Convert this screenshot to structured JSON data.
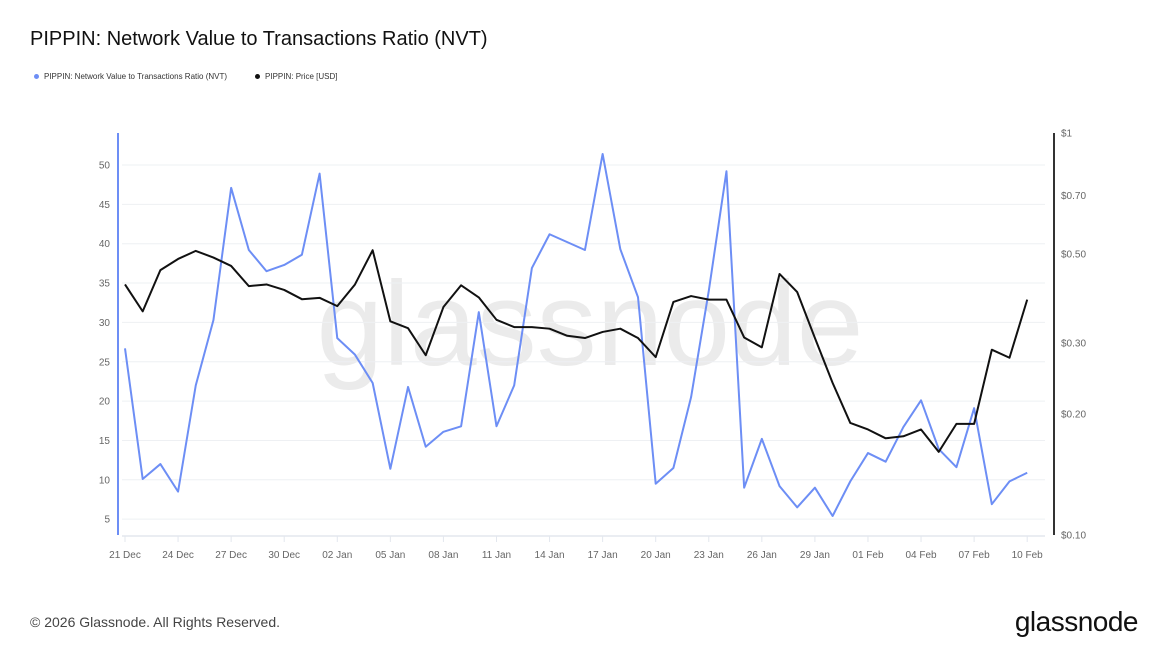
{
  "title": "PIPPIN: Network Value to Transactions Ratio (NVT)",
  "footer": "© 2026 Glassnode. All Rights Reserved.",
  "logo": "glassnode",
  "watermark": "glassnode",
  "chart_data": {
    "type": "line",
    "title": "PIPPIN: Network Value to Transactions Ratio (NVT)",
    "x_start": "2025-12-21",
    "x_end": "2026-02-10",
    "x_step": "1 day",
    "x_tick_labels": [
      "21 Dec",
      "24 Dec",
      "27 Dec",
      "30 Dec",
      "02 Jan",
      "05 Jan",
      "08 Jan",
      "11 Jan",
      "14 Jan",
      "17 Jan",
      "20 Jan",
      "23 Jan",
      "26 Jan",
      "29 Jan",
      "01 Feb",
      "04 Feb",
      "07 Feb",
      "10 Feb"
    ],
    "y_left": {
      "ticks": [
        5,
        10,
        15,
        20,
        25,
        30,
        35,
        40,
        45,
        50
      ],
      "range": [
        2,
        54
      ],
      "scale": "linear",
      "color": "#6d8ef5"
    },
    "y_right": {
      "ticks": [
        "$0.10",
        "$0.20",
        "$0.30",
        "$0.50",
        "$0.70",
        "$1"
      ],
      "tick_values": [
        0.1,
        0.2,
        0.3,
        0.5,
        0.7,
        1
      ],
      "range": [
        0.1,
        1
      ],
      "scale": "log",
      "color": "#222222"
    },
    "grid": true,
    "legend_position": "top-left",
    "series": [
      {
        "name": "PIPPIN: Network Value to Transactions Ratio (NVT)",
        "axis": "left",
        "color": "#6d8ef5",
        "values": [
          26.7,
          10.1,
          12.0,
          8.5,
          22.0,
          30.3,
          47.1,
          39.2,
          36.5,
          37.3,
          38.6,
          48.9,
          28.0,
          25.9,
          22.3,
          11.4,
          21.8,
          14.2,
          16.1,
          16.8,
          31.3,
          16.8,
          22.0,
          36.9,
          41.2,
          40.2,
          39.2,
          51.4,
          39.3,
          33.2,
          9.5,
          11.5,
          20.5,
          34.0,
          49.2,
          9.0,
          15.2,
          9.2,
          6.5,
          9.0,
          5.4,
          9.8,
          13.4,
          12.3,
          16.7,
          20.1,
          13.9,
          11.6,
          19.1,
          6.9,
          9.8,
          10.9
        ]
      },
      {
        "name": "PIPPIN: Price [USD]",
        "axis": "right",
        "color": "#111111",
        "values": [
          0.42,
          0.36,
          0.456,
          0.486,
          0.509,
          0.49,
          0.467,
          0.416,
          0.42,
          0.407,
          0.386,
          0.389,
          0.371,
          0.42,
          0.511,
          0.34,
          0.327,
          0.28,
          0.369,
          0.418,
          0.39,
          0.343,
          0.329,
          0.329,
          0.326,
          0.313,
          0.309,
          0.32,
          0.326,
          0.309,
          0.277,
          0.38,
          0.393,
          0.385,
          0.385,
          0.31,
          0.293,
          0.446,
          0.402,
          0.309,
          0.239,
          0.19,
          0.183,
          0.174,
          0.176,
          0.183,
          0.161,
          0.189,
          0.189,
          0.289,
          0.276,
          0.385
        ]
      }
    ]
  }
}
